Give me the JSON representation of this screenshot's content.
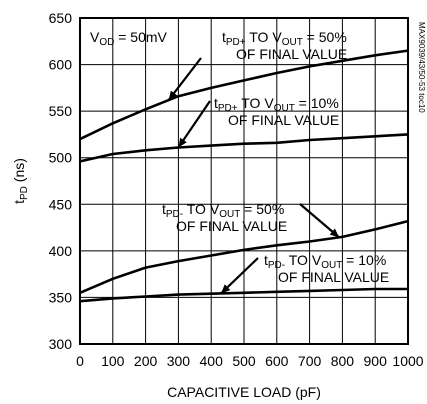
{
  "chart_data": {
    "type": "line",
    "xlabel": "CAPACITIVE LOAD (pF)",
    "ylabel_main": "t",
    "ylabel_sub": "PD",
    "ylabel_tail": " (ns)",
    "xlim": [
      0,
      1000
    ],
    "ylim": [
      300,
      650
    ],
    "x_ticks": [
      0,
      100,
      200,
      300,
      400,
      500,
      600,
      700,
      800,
      900,
      1000
    ],
    "y_ticks": [
      300,
      350,
      400,
      450,
      500,
      550,
      600,
      650
    ],
    "grid": true,
    "watermark": "MAX9039/43/50-53 toc10",
    "condition": {
      "pre": "V",
      "sub": "OD",
      "post": " = 50mV"
    },
    "series": [
      {
        "name": "tPD+ TO VOUT = 50% OF FINAL VALUE",
        "x": [
          0,
          100,
          200,
          300,
          400,
          500,
          600,
          700,
          800,
          900,
          1000
        ],
        "y": [
          520,
          537,
          552,
          566,
          575,
          583,
          591,
          598,
          604,
          610,
          615
        ]
      },
      {
        "name": "tPD+ TO VOUT = 10% OF FINAL VALUE",
        "x": [
          0,
          100,
          200,
          300,
          400,
          500,
          600,
          700,
          800,
          900,
          1000
        ],
        "y": [
          496,
          504,
          508,
          511,
          513,
          515,
          516,
          519,
          521,
          523,
          525
        ]
      },
      {
        "name": "tPD- TO VOUT = 50% OF FINAL VALUE",
        "x": [
          0,
          100,
          200,
          300,
          400,
          500,
          600,
          700,
          800,
          900,
          1000
        ],
        "y": [
          355,
          370,
          382,
          389,
          395,
          401,
          406,
          410,
          415,
          423,
          432
        ]
      },
      {
        "name": "tPD- TO VOUT = 10% OF FINAL VALUE",
        "x": [
          0,
          100,
          200,
          300,
          400,
          500,
          600,
          700,
          800,
          900,
          1000
        ],
        "y": [
          346,
          349,
          351,
          353,
          354,
          355,
          356,
          357,
          358,
          359,
          359
        ]
      }
    ],
    "annotations": [
      {
        "line1": [
          {
            "t": "t"
          },
          {
            "t": "PD+",
            "sub": true
          },
          {
            "t": " TO V"
          },
          {
            "t": "OUT",
            "sub": true
          },
          {
            "t": " = 50%"
          }
        ],
        "line2": "OF FINAL VALUE",
        "target_series": 0,
        "target_x": 270
      },
      {
        "line1": [
          {
            "t": "t"
          },
          {
            "t": "PD+",
            "sub": true
          },
          {
            "t": " TO V"
          },
          {
            "t": "OUT",
            "sub": true
          },
          {
            "t": " = 10%"
          }
        ],
        "line2": "OF FINAL VALUE",
        "target_series": 1,
        "target_x": 300
      },
      {
        "line1": [
          {
            "t": "t"
          },
          {
            "t": "PD-",
            "sub": true
          },
          {
            "t": " TO V"
          },
          {
            "t": "OUT",
            "sub": true
          },
          {
            "t": " = 50%"
          }
        ],
        "line2": "OF FINAL VALUE",
        "target_series": 2,
        "target_x": 790
      },
      {
        "line1": [
          {
            "t": "t"
          },
          {
            "t": "PD-",
            "sub": true
          },
          {
            "t": " TO V"
          },
          {
            "t": "OUT",
            "sub": true
          },
          {
            "t": " = 10%"
          }
        ],
        "line2": "OF FINAL VALUE",
        "target_series": 3,
        "target_x": 430
      }
    ]
  }
}
